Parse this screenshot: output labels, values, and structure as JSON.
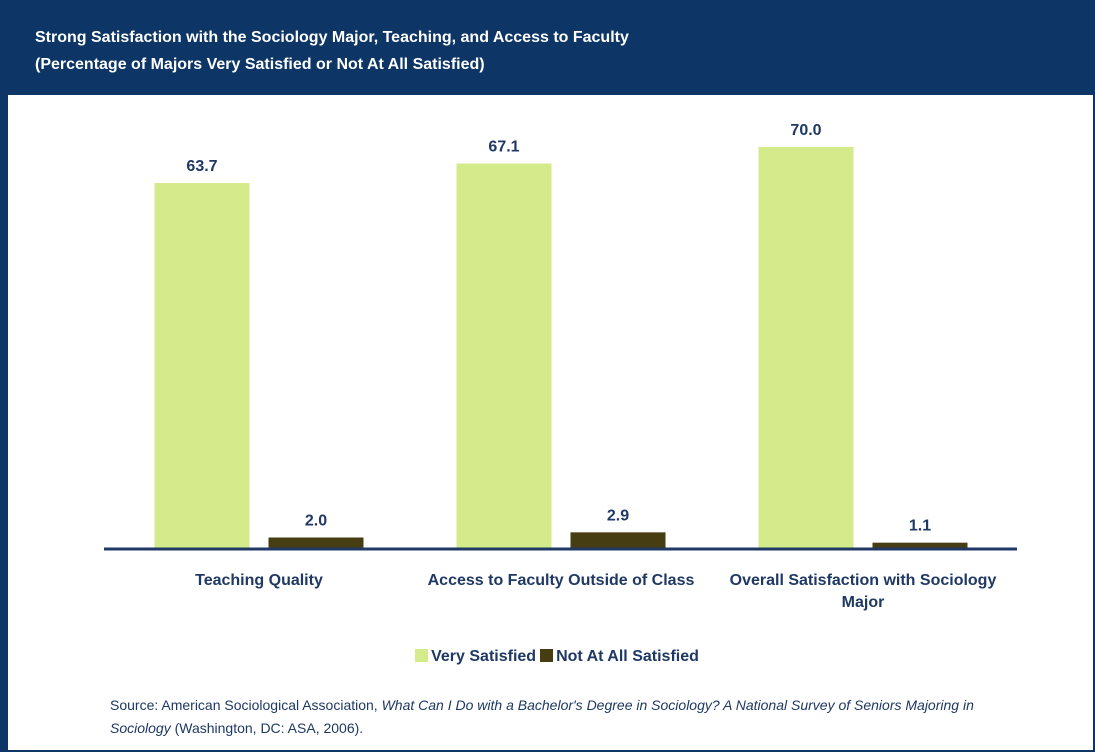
{
  "chart_data": {
    "type": "bar",
    "title": "Strong Satisfaction with the Sociology Major, Teaching, and Access to Faculty",
    "subtitle": "(Percentage of Majors Very Satisfied or Not At All Satisfied)",
    "categories": [
      "Teaching Quality",
      "Access to Faculty Outside of Class",
      "Overall Satisfaction with Sociology Major"
    ],
    "series": [
      {
        "name": "Very Satisfied",
        "color": "#d4ea8b",
        "values": [
          63.7,
          67.1,
          70.0
        ],
        "value_labels": [
          "63.7",
          "67.1",
          "70.0"
        ]
      },
      {
        "name": "Not At All Satisfied",
        "color": "#463d12",
        "values": [
          2.0,
          2.9,
          1.1
        ],
        "value_labels": [
          "2.0",
          "2.9",
          "1.1"
        ]
      }
    ],
    "legend": "bottom",
    "source": {
      "lead": "Source: American Sociological Association,",
      "title": "What Can I Do with a Bachelor's Degree in Sociology?  A National Survey of Seniors Majoring in Sociology",
      "rest": "(Washington, DC: ASA, 2006)."
    }
  }
}
